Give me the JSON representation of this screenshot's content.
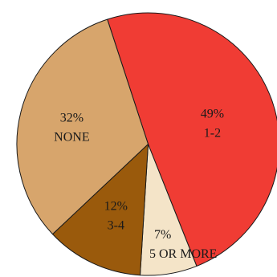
{
  "chart_data": {
    "type": "pie",
    "title": "",
    "slices": [
      {
        "label": "1-2",
        "value": 49,
        "value_label": "49%",
        "color": "#f03c34"
      },
      {
        "label": "5 OR MORE",
        "value": 7,
        "value_label": "7%",
        "color": "#f4e4c8"
      },
      {
        "label": "3-4",
        "value": 12,
        "value_label": "12%",
        "color": "#9a5a0c"
      },
      {
        "label": "NONE",
        "value": 32,
        "value_label": "32%",
        "color": "#d7a56c"
      }
    ],
    "start_angle_deg": -18.1,
    "direction": "clockwise",
    "legend": "none",
    "labels_inside_slices": true
  }
}
